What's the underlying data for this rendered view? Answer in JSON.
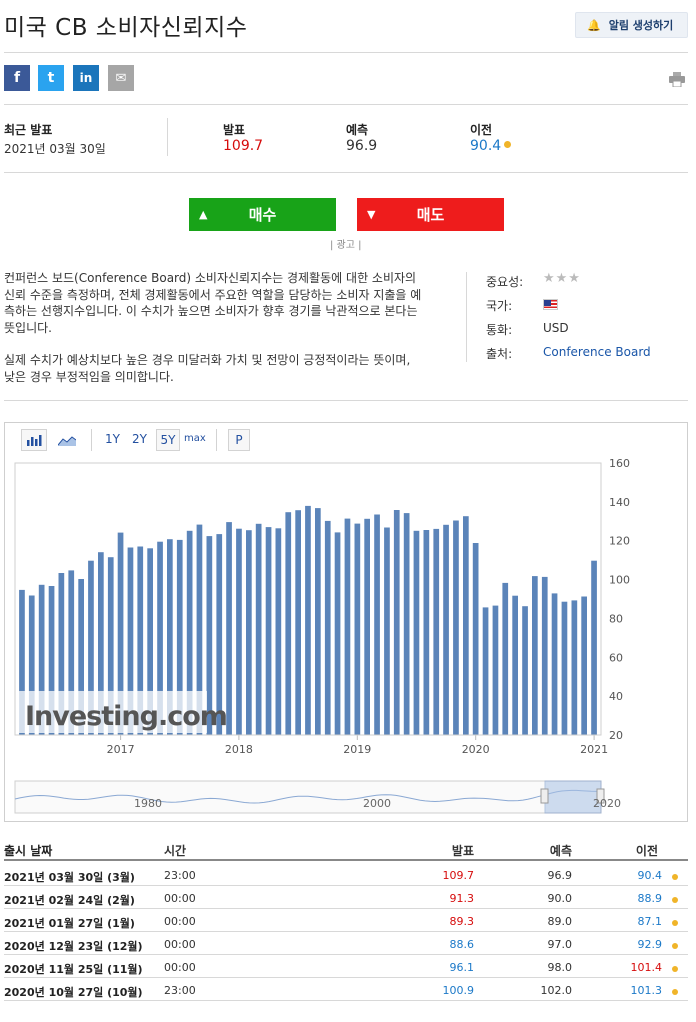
{
  "page": {
    "title": "미국 CB 소비자신뢰지수",
    "alert_button": "알림 생성하기"
  },
  "share": {
    "facebook": "f",
    "twitter": "t",
    "linkedin": "in",
    "email": "✉"
  },
  "stats": {
    "latest_label": "최근 발표",
    "latest_date": "2021년 03월 30일",
    "actual_label": "발표",
    "actual_value": "109.7",
    "forecast_label": "예측",
    "forecast_value": "96.9",
    "previous_label": "이전",
    "previous_value": "90.4"
  },
  "trade": {
    "buy": "매수",
    "sell": "매도",
    "ad": "| 광고 |"
  },
  "description": {
    "p1": "컨퍼런스 보드(Conference Board) 소비자신뢰지수는 경제활동에 대한 소비자의 신뢰 수준을 측정하며, 전체 경제활동에서 주요한 역할을 담당하는 소비자 지출을 예측하는 선행지수입니다. 이 수치가 높으면 소비자가 향후 경기를 낙관적으로 본다는 뜻입니다.",
    "p2": "실제 수치가 예상치보다 높은 경우 미달러화 가치 및 전망이 긍정적이라는 뜻이며, 낮은 경우 부정적임을 의미합니다."
  },
  "meta": {
    "importance_label": "중요성:",
    "importance_stars": "★★★",
    "country_label": "국가:",
    "currency_label": "통화:",
    "currency_value": "USD",
    "source_label": "출처:",
    "source_value": "Conference Board"
  },
  "toolbar": {
    "bar_icon": "bar-chart-icon",
    "line_icon": "line-chart-icon",
    "r1y": "1Y",
    "r2y": "2Y",
    "r5y": "5Y",
    "rmax": "max",
    "p": "P"
  },
  "chart_data": {
    "type": "bar",
    "title": "",
    "xlabel": "",
    "ylabel": "",
    "ylim": [
      20,
      160
    ],
    "y_ticks": [
      "160",
      "140",
      "120",
      "100",
      "80",
      "60",
      "40",
      "20"
    ],
    "x_tick_labels": [
      "2017",
      "2018",
      "2019",
      "2020",
      "2021"
    ],
    "watermark": "Investing.com",
    "grid": false,
    "bar_color": "#5b84b9",
    "values": [
      94.7,
      91.8,
      97.3,
      96.7,
      103.4,
      104.7,
      100.3,
      109.7,
      114.1,
      111.5,
      124.2,
      116.5,
      117.0,
      116.1,
      119.5,
      120.8,
      120.4,
      125.1,
      128.3,
      122.4,
      123.4,
      129.6,
      126.2,
      125.4,
      128.7,
      127.0,
      126.4,
      134.7,
      135.7,
      137.9,
      136.8,
      130.2,
      124.3,
      131.4,
      128.8,
      131.3,
      133.5,
      126.8,
      135.8,
      134.2,
      125.1,
      125.5,
      126.1,
      128.2,
      130.4,
      132.6,
      118.8,
      85.7,
      86.6,
      98.3,
      91.7,
      86.3,
      101.8,
      101.4,
      92.9,
      88.6,
      89.3,
      91.3,
      109.7
    ],
    "navigator": {
      "labels": [
        "1980",
        "2000",
        "2020"
      ]
    }
  },
  "history": {
    "headers": {
      "date": "출시 날짜",
      "time": "시간",
      "actual": "발표",
      "forecast": "예측",
      "previous": "이전"
    },
    "rows": [
      {
        "date": "2021년 03월 30일 (3월)",
        "time": "23:00",
        "actual": "109.7",
        "actual_color": "red",
        "forecast": "96.9",
        "previous": "90.4",
        "previous_color": "blue"
      },
      {
        "date": "2021년 02월 24일 (2월)",
        "time": "00:00",
        "actual": "91.3",
        "actual_color": "red",
        "forecast": "90.0",
        "previous": "88.9",
        "previous_color": "blue"
      },
      {
        "date": "2021년 01월 27일 (1월)",
        "time": "00:00",
        "actual": "89.3",
        "actual_color": "red",
        "forecast": "89.0",
        "previous": "87.1",
        "previous_color": "blue"
      },
      {
        "date": "2020년 12월 23일 (12월)",
        "time": "00:00",
        "actual": "88.6",
        "actual_color": "blue",
        "forecast": "97.0",
        "previous": "92.9",
        "previous_color": "blue"
      },
      {
        "date": "2020년 11월 25일 (11월)",
        "time": "00:00",
        "actual": "96.1",
        "actual_color": "blue",
        "forecast": "98.0",
        "previous": "101.4",
        "previous_color": "red"
      },
      {
        "date": "2020년 10월 27일 (10월)",
        "time": "23:00",
        "actual": "100.9",
        "actual_color": "blue",
        "forecast": "102.0",
        "previous": "101.3",
        "previous_color": "blue"
      }
    ]
  }
}
